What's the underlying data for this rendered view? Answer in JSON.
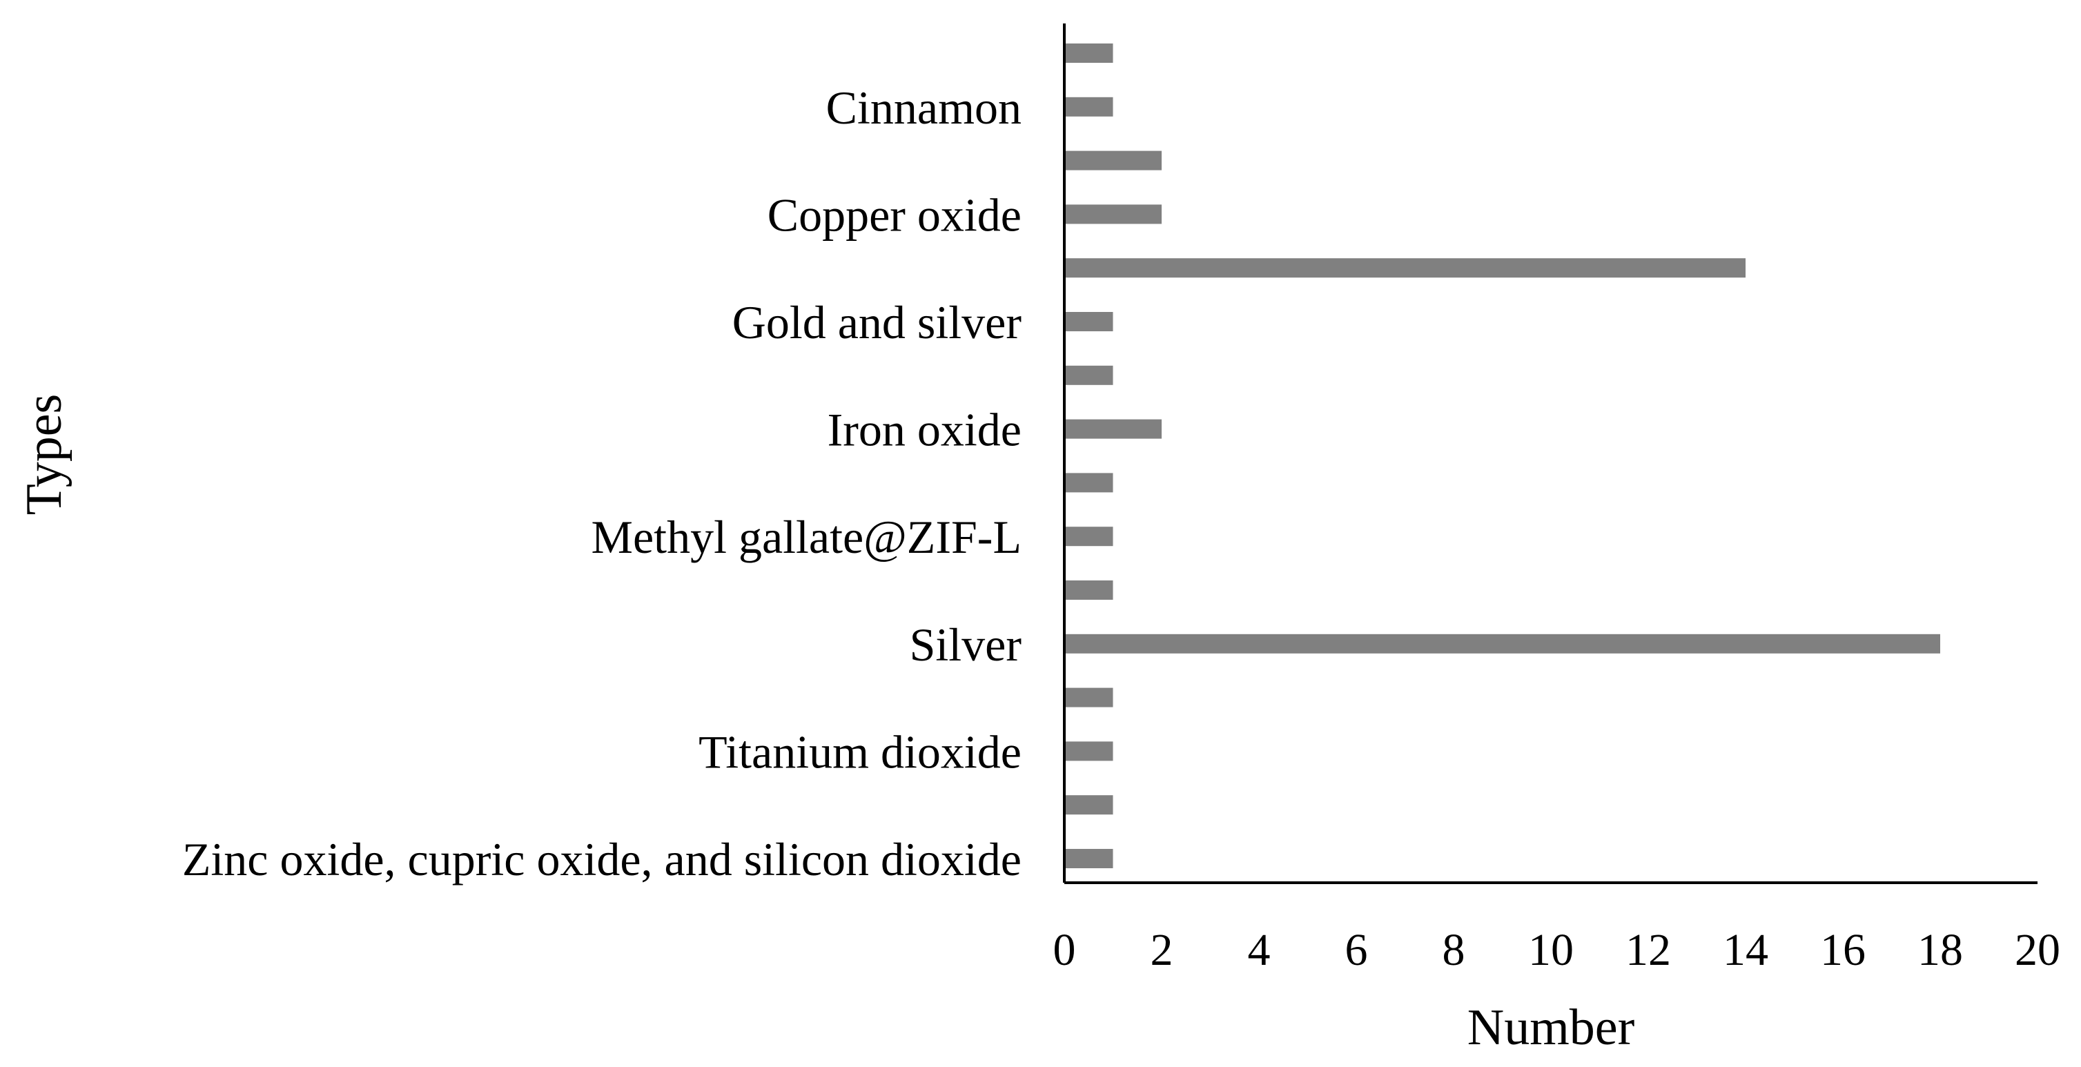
{
  "chart_data": {
    "type": "bar",
    "orientation": "horizontal",
    "title": "",
    "xlabel": "Number",
    "ylabel": "Types",
    "xlim": [
      0,
      20
    ],
    "xticks": [
      0,
      2,
      4,
      6,
      8,
      10,
      12,
      14,
      16,
      18,
      20
    ],
    "grid": false,
    "bar_color": "#808080",
    "bars": [
      {
        "label": "",
        "value": 1
      },
      {
        "label": "Cinnamon",
        "value": 1
      },
      {
        "label": "",
        "value": 2
      },
      {
        "label": "Copper oxide",
        "value": 2
      },
      {
        "label": "",
        "value": 14
      },
      {
        "label": "Gold and silver",
        "value": 1
      },
      {
        "label": "",
        "value": 1
      },
      {
        "label": "Iron oxide",
        "value": 2
      },
      {
        "label": "",
        "value": 1
      },
      {
        "label": "Methyl gallate@ZIF-L",
        "value": 1
      },
      {
        "label": "",
        "value": 1
      },
      {
        "label": "Silver",
        "value": 18
      },
      {
        "label": "",
        "value": 1
      },
      {
        "label": "Titanium dioxide",
        "value": 1
      },
      {
        "label": "",
        "value": 1
      },
      {
        "label": "Zinc oxide, cupric oxide, and silicon dioxide",
        "value": 1
      }
    ]
  }
}
